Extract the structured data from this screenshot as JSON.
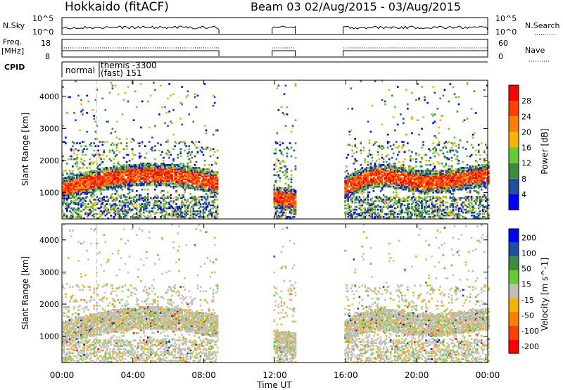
{
  "header": {
    "station": "Hokkaido (fitACF)",
    "beam_date": "Beam 03  02/Aug/2015 - 03/Aug/2015"
  },
  "strip_labels": {
    "nsky": "N.Sky",
    "nsky_top": "10^5",
    "nsky_bottom": "10^0",
    "nsearch": "N.Search",
    "nsearch_top": "10^5",
    "nsearch_bottom": "10^0",
    "freq": "Freq.",
    "freq_unit": "[MHz]",
    "freq_top": "18",
    "freq_bottom": "8",
    "nave": "Nave",
    "nave_top": "60",
    "nave_bottom": "0",
    "cpid": "CPID",
    "cpid_normal": "normal",
    "cpid_themis": "themis -3300",
    "cpid_fast": "(fast) 151"
  },
  "colors": {
    "power": [
      "#0000ff",
      "#1f4fa0",
      "#3c8c3c",
      "#66cc33",
      "#f5b400",
      "#ff8000",
      "#ff4000",
      "#ff0000"
    ],
    "velocity": [
      "#ff0000",
      "#ff4000",
      "#ff8000",
      "#f5b400",
      "#c0c0b8",
      "#66cc33",
      "#3c8c3c",
      "#1f4fa0",
      "#0000ff"
    ]
  },
  "chart_data": {
    "type": "heatmap",
    "x": {
      "label": "Time UT",
      "ticks": [
        "00:00",
        "04:00",
        "08:00",
        "12:00",
        "16:00",
        "20:00",
        "00:00"
      ],
      "range_hours": [
        0,
        24
      ]
    },
    "y": {
      "label": "Slant Range [km]",
      "ticks": [
        1000,
        2000,
        3000,
        4000
      ],
      "range_km": [
        180,
        4500
      ]
    },
    "data_gaps_hours": [
      [
        8.8,
        11.85
      ],
      [
        13.15,
        15.85
      ]
    ],
    "panels": [
      {
        "quantity": "Power",
        "unit_label": "Power [dB]",
        "colorbar_ticks": [
          "28",
          "24",
          "20",
          "16",
          "12",
          "8",
          "4"
        ],
        "range": [
          0,
          32
        ]
      },
      {
        "quantity": "Velocity",
        "unit_label": "Velocity [m s^-1]",
        "colorbar_ticks": [
          "200",
          "100",
          "50",
          "15",
          "-15",
          "-50",
          "-100",
          "-200"
        ],
        "range": [
          -250,
          250
        ]
      }
    ]
  }
}
